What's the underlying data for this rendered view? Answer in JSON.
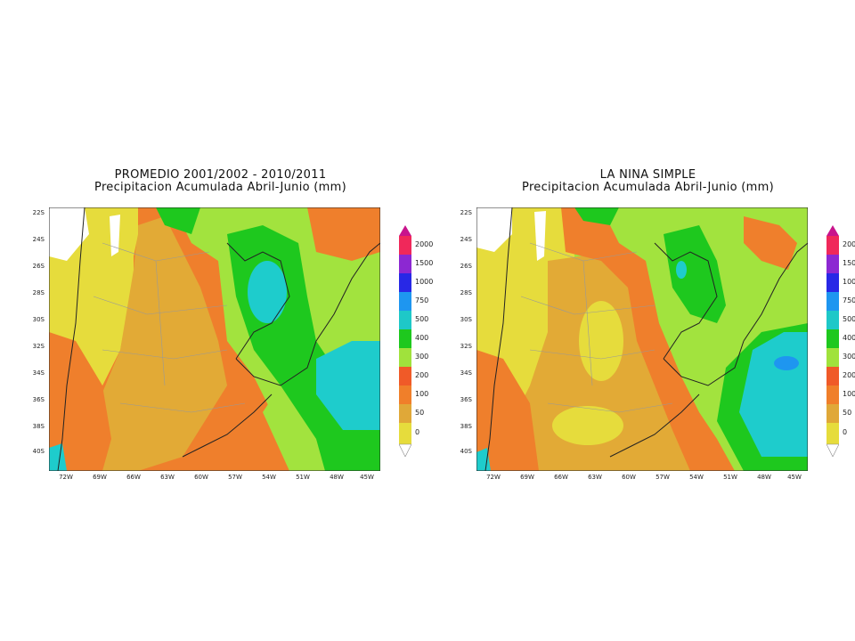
{
  "panels": [
    {
      "title": "PROMEDIO 2001/2002 - 2010/2011",
      "subtitle": "Precipitacion Acumulada Abril-Junio (mm)"
    },
    {
      "title": "LA NINA SIMPLE",
      "subtitle": "Precipitacion Acumulada Abril-Junio (mm)"
    }
  ],
  "axes": {
    "lat_labels": [
      "22S",
      "24S",
      "26S",
      "28S",
      "30S",
      "32S",
      "34S",
      "36S",
      "38S",
      "40S"
    ],
    "lon_labels": [
      "72W",
      "69W",
      "66W",
      "63W",
      "60W",
      "57W",
      "54W",
      "51W",
      "48W",
      "45W"
    ]
  },
  "colorbar": {
    "levels": [
      "0",
      "50",
      "100",
      "200",
      "300",
      "400",
      "500",
      "750",
      "1000",
      "1500",
      "2000"
    ],
    "colors": [
      "#e6dc3c",
      "#e0a838",
      "#f07f2a",
      "#f05a28",
      "#a0e23c",
      "#1ec81e",
      "#1ec8c8",
      "#1e96f0",
      "#2828e6",
      "#8c28d2",
      "#f0285a",
      "#c8148c"
    ]
  },
  "palette": {
    "lowest": "#e6dc3c",
    "low": "#e2aa36",
    "mid": "#ef7f2c",
    "lightgreen": "#a2e33e",
    "green": "#1ec81e",
    "cyan": "#1ecccc",
    "blue": "#1e96f0"
  }
}
